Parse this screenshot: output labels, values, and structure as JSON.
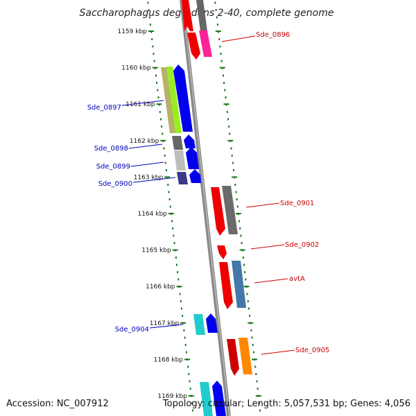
{
  "title": "Saccharophagus degradans 2-40, complete genome",
  "accession": "Accession: NC_007912",
  "topology": "Topology: circular; Length: 5,057,531 bp; Genes: 4,056",
  "colors": {
    "forward_label": "#cc0000",
    "reverse_label": "#0000bb",
    "backbone": "#888888",
    "tick": "#1a7a1a"
  },
  "ruler": [
    {
      "kbp": 1159,
      "label": "1159 kbp"
    },
    {
      "kbp": 1160,
      "label": "1160 kbp"
    },
    {
      "kbp": 1161,
      "label": "1161 kbp"
    },
    {
      "kbp": 1162,
      "label": "1162 kbp"
    },
    {
      "kbp": 1163,
      "label": "1163 kbp"
    },
    {
      "kbp": 1164,
      "label": "1164 kbp"
    },
    {
      "kbp": 1165,
      "label": "1165 kbp"
    },
    {
      "kbp": 1166,
      "label": "1166 kbp"
    },
    {
      "kbp": 1167,
      "label": "1167 kbp"
    },
    {
      "kbp": 1168,
      "label": "1168 kbp"
    },
    {
      "kbp": 1169,
      "label": "1169 kbp"
    }
  ],
  "gene_labels": [
    {
      "name": "Sde_0896",
      "strand": "forward"
    },
    {
      "name": "Sde_0897",
      "strand": "reverse"
    },
    {
      "name": "Sde_0898",
      "strand": "reverse"
    },
    {
      "name": "Sde_0899",
      "strand": "reverse"
    },
    {
      "name": "Sde_0900",
      "strand": "reverse"
    },
    {
      "name": "Sde_0901",
      "strand": "forward"
    },
    {
      "name": "Sde_0902",
      "strand": "forward"
    },
    {
      "name": "avtA",
      "strand": "forward"
    },
    {
      "name": "Sde_0904",
      "strand": "reverse"
    },
    {
      "name": "Sde_0905",
      "strand": "forward"
    }
  ]
}
